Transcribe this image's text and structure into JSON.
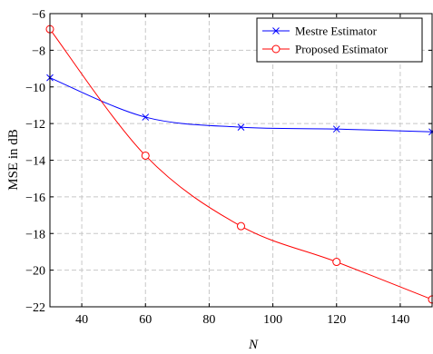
{
  "chart_data": {
    "type": "line",
    "title": "",
    "xlabel": "N",
    "ylabel": "MSE in dB",
    "xlim": [
      30,
      150
    ],
    "ylim": [
      -22,
      -6
    ],
    "xticks": [
      40,
      60,
      80,
      100,
      120,
      140
    ],
    "yticks": [
      -22,
      -20,
      -18,
      -16,
      -14,
      -12,
      -10,
      -8,
      -6
    ],
    "grid": true,
    "legend_position": "top-right",
    "series": [
      {
        "name": "Mestre Estimator",
        "color": "#0000ff",
        "marker": "x",
        "x": [
          30,
          60,
          90,
          120,
          150
        ],
        "y": [
          -9.5,
          -11.65,
          -12.2,
          -12.3,
          -12.45
        ]
      },
      {
        "name": "Proposed Estimator",
        "color": "#ff0000",
        "marker": "o",
        "x": [
          30,
          60,
          90,
          120,
          150
        ],
        "y": [
          -6.85,
          -13.75,
          -17.6,
          -19.55,
          -21.6
        ]
      }
    ]
  }
}
